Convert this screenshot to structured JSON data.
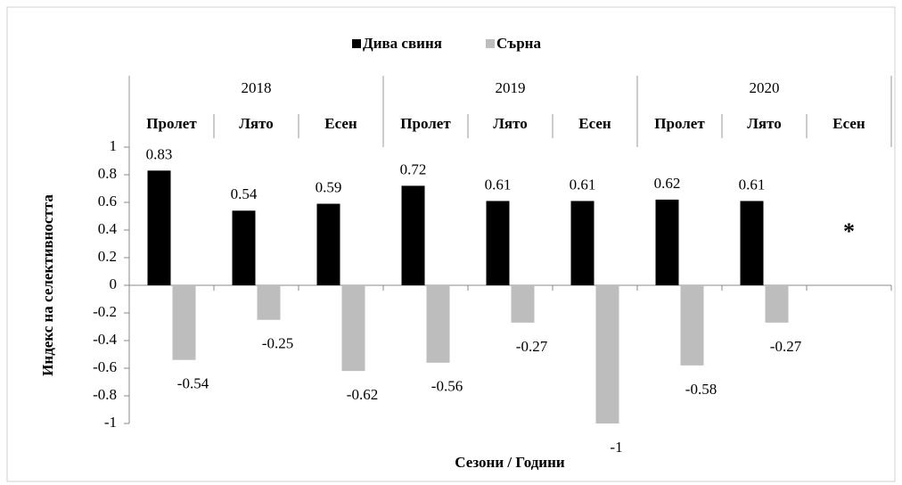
{
  "chart_data": {
    "type": "bar",
    "x_label": "Сезони / Години",
    "y_label": "Индекс на селективността",
    "years": [
      "2018",
      "2019",
      "2020"
    ],
    "categories": [
      "Пролет",
      "Лято",
      "Есен",
      "Пролет",
      "Лято",
      "Есен",
      "Пролет",
      "Лято",
      "Есен"
    ],
    "series": [
      {
        "name": "Дива свиня",
        "color": "#000000",
        "values": [
          0.83,
          0.54,
          0.59,
          0.72,
          0.61,
          0.61,
          0.62,
          0.61,
          null
        ]
      },
      {
        "name": "Сърна",
        "color": "#bdbdbd",
        "values": [
          -0.54,
          -0.25,
          -0.62,
          -0.56,
          -0.27,
          -1,
          -0.58,
          -0.27,
          null
        ]
      }
    ],
    "annotation": "*",
    "ylim": [
      -1,
      1
    ],
    "yticks": [
      -1,
      -0.8,
      -0.6,
      -0.4,
      -0.2,
      0,
      0.2,
      0.4,
      0.6,
      0.8,
      1
    ],
    "legend": "top"
  }
}
